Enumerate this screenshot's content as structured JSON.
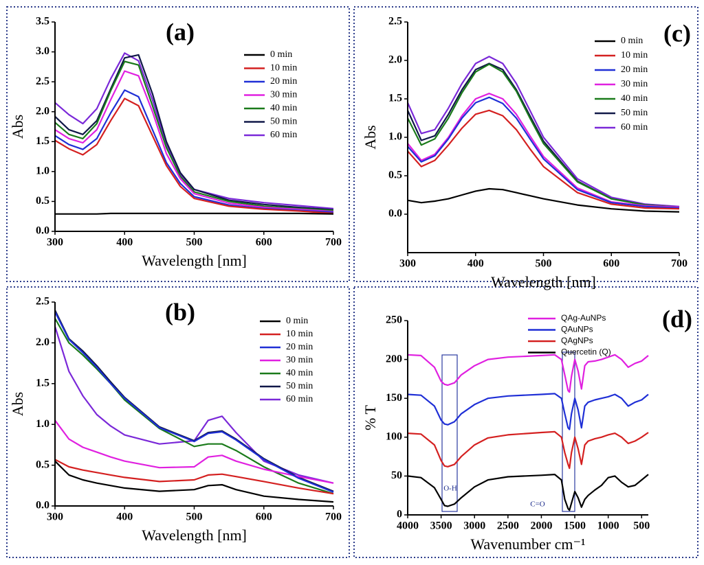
{
  "chart_data": [
    {
      "type": "line",
      "title": "(a)",
      "xlabel": "Wavelength [nm]",
      "ylabel": "Abs",
      "x": [
        300,
        320,
        340,
        360,
        380,
        400,
        420,
        440,
        460,
        480,
        500,
        550,
        600,
        650,
        700
      ],
      "xlim": [
        300,
        700
      ],
      "ylim": [
        0,
        3.5
      ],
      "xticks": [
        300,
        400,
        500,
        600,
        700
      ],
      "yticks": [
        {
          "value": 0,
          "label": "0.0"
        },
        0.5,
        {
          "value": 1,
          "label": "1.0"
        },
        1.5,
        {
          "value": 2,
          "label": "2.0"
        },
        2.5,
        {
          "value": 3,
          "label": "3.0"
        },
        3.5
      ],
      "legend": "upper right",
      "series": [
        {
          "name": "0 min",
          "color": "#000000",
          "values": [
            0.29,
            0.29,
            0.29,
            0.29,
            0.3,
            0.3,
            0.3,
            0.3,
            0.3,
            0.3,
            0.3,
            0.3,
            0.3,
            0.3,
            0.29
          ]
        },
        {
          "name": "10 min",
          "color": "#d42020",
          "values": [
            1.52,
            1.38,
            1.28,
            1.45,
            1.85,
            2.22,
            2.1,
            1.6,
            1.1,
            0.75,
            0.55,
            0.42,
            0.37,
            0.34,
            0.3
          ]
        },
        {
          "name": "20 min",
          "color": "#1f2fd6",
          "values": [
            1.6,
            1.45,
            1.37,
            1.55,
            1.98,
            2.36,
            2.25,
            1.7,
            1.15,
            0.8,
            0.58,
            0.44,
            0.38,
            0.35,
            0.32
          ]
        },
        {
          "name": "30 min",
          "color": "#e020e0",
          "values": [
            1.7,
            1.55,
            1.48,
            1.7,
            2.2,
            2.68,
            2.6,
            2.0,
            1.3,
            0.88,
            0.63,
            0.47,
            0.4,
            0.37,
            0.33
          ]
        },
        {
          "name": "40 min",
          "color": "#1a7a1a",
          "values": [
            1.82,
            1.62,
            1.55,
            1.8,
            2.35,
            2.84,
            2.78,
            2.1,
            1.4,
            0.92,
            0.66,
            0.5,
            0.42,
            0.38,
            0.35
          ]
        },
        {
          "name": "50 min",
          "color": "#101848",
          "values": [
            1.92,
            1.7,
            1.62,
            1.85,
            2.38,
            2.9,
            2.95,
            2.3,
            1.5,
            0.98,
            0.7,
            0.52,
            0.45,
            0.4,
            0.36
          ]
        },
        {
          "name": "60 min",
          "color": "#7a28d8",
          "values": [
            2.15,
            1.95,
            1.8,
            2.05,
            2.55,
            2.98,
            2.85,
            2.2,
            1.45,
            0.95,
            0.7,
            0.55,
            0.48,
            0.43,
            0.38
          ]
        }
      ]
    },
    {
      "type": "line",
      "title": "(c)",
      "xlabel": "Wavelength [nm]",
      "ylabel": "Abs",
      "x": [
        300,
        320,
        340,
        360,
        380,
        400,
        420,
        440,
        460,
        480,
        500,
        550,
        600,
        650,
        700
      ],
      "xlim": [
        300,
        700
      ],
      "ylim": [
        -0.5,
        2.5
      ],
      "xticks": [
        300,
        400,
        500,
        600,
        700
      ],
      "yticks": [
        {
          "value": 0,
          "label": "0.0"
        },
        0.5,
        {
          "value": 1,
          "label": "1.0"
        },
        1.5,
        {
          "value": 2,
          "label": "2.0"
        },
        2.5
      ],
      "legend": "upper right",
      "series": [
        {
          "name": "0 min",
          "color": "#000000",
          "values": [
            0.18,
            0.15,
            0.17,
            0.2,
            0.25,
            0.3,
            0.33,
            0.32,
            0.28,
            0.24,
            0.2,
            0.12,
            0.07,
            0.04,
            0.03
          ]
        },
        {
          "name": "10 min",
          "color": "#d42020",
          "values": [
            0.82,
            0.62,
            0.7,
            0.9,
            1.12,
            1.3,
            1.35,
            1.28,
            1.1,
            0.85,
            0.62,
            0.28,
            0.13,
            0.08,
            0.07
          ]
        },
        {
          "name": "20 min",
          "color": "#1f2fd6",
          "values": [
            0.88,
            0.68,
            0.76,
            0.98,
            1.25,
            1.45,
            1.52,
            1.44,
            1.25,
            0.98,
            0.72,
            0.32,
            0.15,
            0.1,
            0.08
          ]
        },
        {
          "name": "30 min",
          "color": "#e020e0",
          "values": [
            0.92,
            0.7,
            0.78,
            1.0,
            1.28,
            1.5,
            1.57,
            1.5,
            1.3,
            1.02,
            0.75,
            0.34,
            0.16,
            0.11,
            0.09
          ]
        },
        {
          "name": "40 min",
          "color": "#1a7a1a",
          "values": [
            1.25,
            0.9,
            0.98,
            1.25,
            1.58,
            1.85,
            1.95,
            1.85,
            1.6,
            1.25,
            0.92,
            0.42,
            0.2,
            0.12,
            0.09
          ]
        },
        {
          "name": "50 min",
          "color": "#101848",
          "values": [
            1.35,
            0.96,
            1.02,
            1.3,
            1.62,
            1.88,
            1.96,
            1.88,
            1.62,
            1.28,
            0.95,
            0.43,
            0.2,
            0.12,
            0.09
          ]
        },
        {
          "name": "60 min",
          "color": "#7a28d8",
          "values": [
            1.45,
            1.05,
            1.1,
            1.38,
            1.7,
            1.96,
            2.05,
            1.96,
            1.7,
            1.35,
            1.0,
            0.46,
            0.22,
            0.13,
            0.1
          ]
        }
      ]
    },
    {
      "type": "line",
      "title": "(b)",
      "xlabel": "Wavelength [nm]",
      "ylabel": "Abs",
      "x": [
        300,
        320,
        340,
        360,
        380,
        400,
        450,
        500,
        520,
        540,
        560,
        600,
        650,
        700
      ],
      "xlim": [
        300,
        700
      ],
      "ylim": [
        0,
        2.5
      ],
      "xticks": [
        300,
        400,
        500,
        600,
        700
      ],
      "yticks": [
        {
          "value": 0,
          "label": "0.0"
        },
        0.5,
        {
          "value": 1,
          "label": "1.0"
        },
        1.5,
        {
          "value": 2,
          "label": "2.0"
        },
        2.5
      ],
      "legend": "upper right",
      "series": [
        {
          "name": "0 min",
          "color": "#000000",
          "values": [
            0.55,
            0.38,
            0.32,
            0.28,
            0.25,
            0.22,
            0.18,
            0.2,
            0.25,
            0.26,
            0.2,
            0.12,
            0.08,
            0.05
          ]
        },
        {
          "name": "10 min",
          "color": "#d42020",
          "values": [
            0.57,
            0.48,
            0.44,
            0.41,
            0.38,
            0.35,
            0.3,
            0.32,
            0.38,
            0.39,
            0.36,
            0.3,
            0.22,
            0.15
          ]
        },
        {
          "name": "20 min",
          "color": "#1f2fd6",
          "values": [
            2.38,
            2.04,
            1.88,
            1.7,
            1.5,
            1.32,
            0.96,
            0.79,
            0.89,
            0.91,
            0.81,
            0.57,
            0.34,
            0.17
          ]
        },
        {
          "name": "30 min",
          "color": "#e020e0",
          "values": [
            1.05,
            0.82,
            0.72,
            0.66,
            0.6,
            0.55,
            0.47,
            0.48,
            0.6,
            0.62,
            0.55,
            0.45,
            0.36,
            0.28
          ]
        },
        {
          "name": "40 min",
          "color": "#1a7a1a",
          "values": [
            2.3,
            2.0,
            1.85,
            1.68,
            1.5,
            1.3,
            0.95,
            0.73,
            0.76,
            0.76,
            0.68,
            0.48,
            0.28,
            0.15
          ]
        },
        {
          "name": "50 min",
          "color": "#101848",
          "values": [
            2.4,
            2.05,
            1.9,
            1.72,
            1.52,
            1.33,
            0.97,
            0.8,
            0.9,
            0.92,
            0.82,
            0.58,
            0.35,
            0.18
          ]
        },
        {
          "name": "60 min",
          "color": "#7a28d8",
          "values": [
            2.2,
            1.65,
            1.35,
            1.12,
            0.98,
            0.87,
            0.76,
            0.8,
            1.05,
            1.1,
            0.9,
            0.55,
            0.38,
            0.28
          ]
        }
      ]
    },
    {
      "type": "line",
      "title": "(d)",
      "xlabel": "Wavenumber cm⁻¹",
      "ylabel": "% T",
      "x": [
        4000,
        3800,
        3600,
        3500,
        3450,
        3400,
        3300,
        3200,
        3000,
        2800,
        2500,
        2000,
        1800,
        1700,
        1650,
        1600,
        1580,
        1550,
        1500,
        1450,
        1400,
        1350,
        1300,
        1200,
        1100,
        1000,
        900,
        800,
        700,
        600,
        500,
        400
      ],
      "xlim": [
        4000,
        400
      ],
      "ylim": [
        0,
        250
      ],
      "xticks": [
        4000,
        3500,
        3000,
        2500,
        2000,
        1500,
        1000,
        500
      ],
      "yticks": [
        0,
        50,
        100,
        150,
        200,
        250
      ],
      "legend": "upper center",
      "annotations": [
        "O-H",
        "C=O"
      ],
      "series": [
        {
          "name": "QAg-AuNPs",
          "color": "#e020e0",
          "values": [
            206,
            205,
            190,
            172,
            168,
            167,
            170,
            180,
            192,
            200,
            203,
            205,
            206,
            200,
            180,
            160,
            158,
            178,
            200,
            185,
            162,
            192,
            197,
            198,
            200,
            203,
            206,
            200,
            190,
            195,
            198,
            205
          ]
        },
        {
          "name": "QAuNPs",
          "color": "#1f2fd6",
          "values": [
            155,
            154,
            140,
            122,
            117,
            116,
            120,
            130,
            142,
            150,
            153,
            155,
            156,
            150,
            130,
            112,
            110,
            130,
            150,
            135,
            112,
            140,
            145,
            148,
            150,
            152,
            155,
            150,
            140,
            145,
            148,
            155
          ]
        },
        {
          "name": "QAgNPs",
          "color": "#d42020",
          "values": [
            105,
            104,
            90,
            70,
            63,
            62,
            65,
            75,
            90,
            99,
            103,
            106,
            107,
            100,
            80,
            65,
            60,
            80,
            100,
            85,
            65,
            90,
            95,
            98,
            100,
            103,
            105,
            100,
            92,
            95,
            100,
            106
          ]
        },
        {
          "name": "Quercetin (Q)",
          "color": "#000000",
          "values": [
            50,
            48,
            35,
            20,
            12,
            11,
            14,
            22,
            36,
            45,
            49,
            51,
            52,
            45,
            20,
            8,
            6,
            15,
            30,
            22,
            10,
            20,
            25,
            32,
            38,
            48,
            50,
            42,
            36,
            38,
            45,
            52
          ]
        }
      ]
    }
  ]
}
